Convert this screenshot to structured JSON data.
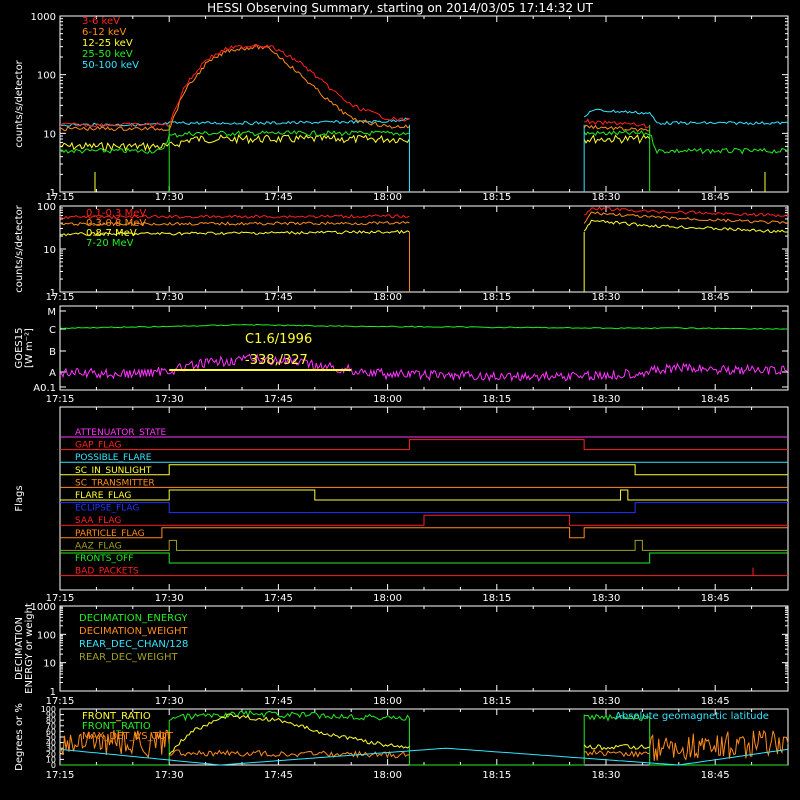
{
  "title": "HESSI Observing Summary, starting on 2014/03/05 17:14:32 UT",
  "colors": {
    "background": "#000000",
    "axes": "#ffffff",
    "red": "#ff2020",
    "orange": "#ff8c1a",
    "yellow": "#ffff33",
    "green": "#22ee22",
    "cyan": "#33e6ff",
    "magenta": "#ff33ff",
    "blue": "#2233ff",
    "olive": "#a0a020"
  },
  "time_axis": {
    "start": "17:15",
    "end": "18:55",
    "tick_labels": [
      "17:15",
      "17:30",
      "17:45",
      "18:00",
      "18:15",
      "18:30",
      "18:45"
    ]
  },
  "panels": [
    {
      "id": "rates",
      "ylabel": "counts/s/detector",
      "yscale": "log",
      "ylim": [
        1,
        1000
      ],
      "ytick_labels": [
        "1",
        "10",
        "100",
        "1000"
      ],
      "legend": [
        "3-6 keV",
        "6-12 keV",
        "12-25 keV",
        "25-50 keV",
        "50-100 keV"
      ]
    },
    {
      "id": "high-energy",
      "ylabel": "counts/s/detector",
      "yscale": "log",
      "ylim": [
        1,
        100
      ],
      "ytick_labels": [
        "1",
        "10",
        "100"
      ],
      "legend": [
        "0.1-0.3 MeV",
        "0.3-0.8 MeV",
        "0.8-7 MeV",
        "7-20 MeV"
      ]
    },
    {
      "id": "goes",
      "ylabel": "GOES15",
      "ylabel2": "[W m⁻²]",
      "ytick_labels": [
        "A0.1",
        "A",
        "B",
        "C",
        "M"
      ],
      "annotation1": "C1.6/1996",
      "annotation2": "-338,/327"
    },
    {
      "id": "flags",
      "ylabel": "Flags",
      "flags": [
        "ATTENUATOR_STATE",
        "GAP_FLAG",
        "POSSIBLE_FLARE",
        "SC_IN_SUNLIGHT",
        "SC_TRANSMITTER",
        "FLARE_FLAG",
        "ECLIPSE_FLAG",
        "SAA_FLAG",
        "PARTICLE_FLAG",
        "AAZ_FLAG",
        "FRONTS_OFF",
        "BAD_PACKETS"
      ]
    },
    {
      "id": "decimation",
      "ylabel": "DECIMATION",
      "ylabel2": "ENERGY or weight",
      "yscale": "log",
      "ylim": [
        1,
        1000
      ],
      "ytick_labels": [
        "1",
        "10",
        "100",
        "1000"
      ],
      "legend": [
        "DECIMATION_ENERGY",
        "DECIMATION_WEIGHT",
        "REAR_DEC_CHAN/128",
        "REAR_DEC_WEIGHT"
      ]
    },
    {
      "id": "ratios",
      "ylabel": "Degrees or %",
      "ylim": [
        0,
        100
      ],
      "ytick_labels": [
        "0",
        "10",
        "20",
        "30",
        "40",
        "50",
        "60",
        "70",
        "80",
        "90",
        "100"
      ],
      "legend": [
        "FRONT_RATIO",
        "FRONT_RATIO",
        "MAX_DET_VS_TOT"
      ],
      "legend_right": "Absolute geomagnetic latitude"
    }
  ],
  "chart_data": [
    {
      "type": "line",
      "title": "",
      "ylabel": "counts/s/detector",
      "yscale": "log",
      "ylim": [
        1,
        1000
      ],
      "xlim": [
        "17:15",
        "18:55"
      ],
      "series": [
        {
          "name": "3-6 keV",
          "x": [
            "17:15",
            "17:30",
            "17:32",
            "17:35",
            "17:38",
            "17:42",
            "17:44",
            "17:48",
            "17:52",
            "17:55",
            "18:00",
            "18:02",
            "18:03",
            "18:27",
            "18:28",
            "18:32",
            "18:36"
          ],
          "y": [
            14,
            14,
            60,
            180,
            280,
            320,
            300,
            160,
            60,
            30,
            18,
            17,
            17,
            17,
            15,
            15,
            13
          ]
        },
        {
          "name": "6-12 keV",
          "x": [
            "17:15",
            "17:30",
            "17:32",
            "17:35",
            "17:38",
            "17:42",
            "17:44",
            "17:48",
            "17:52",
            "17:55",
            "18:00",
            "18:02",
            "18:03",
            "18:27",
            "18:28",
            "18:36"
          ],
          "y": [
            12,
            12,
            50,
            150,
            260,
            300,
            270,
            100,
            35,
            18,
            13,
            13,
            13,
            13,
            13,
            11
          ]
        },
        {
          "name": "12-25 keV",
          "x": [
            "17:15",
            "17:30",
            "17:33",
            "17:45",
            "18:00",
            "18:03",
            "18:27",
            "18:28",
            "18:36"
          ],
          "y": [
            6,
            6,
            8,
            8,
            8,
            8,
            8,
            8,
            8
          ]
        },
        {
          "name": "25-50 keV",
          "x": [
            "17:15",
            "17:29",
            "17:30",
            "17:33",
            "17:45",
            "18:00",
            "18:03",
            "18:27",
            "18:28",
            "18:36",
            "18:37",
            "18:55"
          ],
          "y": [
            5,
            5,
            9,
            10,
            10,
            10,
            10,
            10,
            10,
            10,
            5,
            5
          ]
        },
        {
          "name": "50-100 keV",
          "x": [
            "17:15",
            "17:29",
            "17:30",
            "17:45",
            "18:00",
            "18:03",
            "18:27",
            "18:28",
            "18:36",
            "18:37",
            "18:55"
          ],
          "y": [
            14,
            14,
            15,
            15,
            16,
            18,
            18,
            25,
            22,
            15,
            15
          ]
        }
      ]
    },
    {
      "type": "line",
      "title": "",
      "ylabel": "counts/s/detector",
      "yscale": "log",
      "ylim": [
        1,
        100
      ],
      "xlim": [
        "17:15",
        "18:55"
      ],
      "series": [
        {
          "name": "0.1-0.3 MeV",
          "x": [
            "17:15",
            "18:03",
            "18:27",
            "18:28",
            "18:36",
            "18:55"
          ],
          "y": [
            55,
            58,
            58,
            90,
            75,
            60
          ]
        },
        {
          "name": "0.3-0.8 MeV",
          "x": [
            "17:15",
            "18:03",
            "18:27",
            "18:28",
            "18:36",
            "18:55"
          ],
          "y": [
            38,
            40,
            40,
            70,
            55,
            40
          ]
        },
        {
          "name": "0.8-7 MeV",
          "x": [
            "17:15",
            "18:03",
            "18:27",
            "18:28",
            "18:36",
            "18:55"
          ],
          "y": [
            22,
            25,
            25,
            45,
            35,
            25
          ]
        },
        {
          "name": "7-20 MeV",
          "x": [],
          "y": []
        }
      ]
    },
    {
      "type": "line",
      "title": "",
      "ylabel": "GOES15",
      "series": [
        {
          "name": "",
          "x": [
            "17:15",
            "17:30",
            "17:40",
            "17:50",
            "18:00",
            "18:15",
            "18:30",
            "18:40",
            "18:55"
          ],
          "y": [
            1.1e-06,
            1.3e-06,
            1.6e-06,
            1.4e-06,
            1.3e-06,
            1.2e-06,
            1.1e-06,
            1.1e-06,
            1e-06
          ]
        },
        {
          "name": "",
          "x": [
            "17:15",
            "17:25",
            "17:30",
            "17:35",
            "17:40",
            "17:45",
            "17:50",
            "17:55",
            "18:00",
            "18:15",
            "18:30",
            "18:35",
            "18:40",
            "18:55"
          ],
          "y": [
            9e-09,
            8e-09,
            1.2e-08,
            2.5e-08,
            4e-08,
            3.5e-08,
            2e-08,
            1.2e-08,
            8e-09,
            6e-09,
            7e-09,
            1e-08,
            1.5e-08,
            1.1e-08
          ]
        }
      ]
    }
  ]
}
